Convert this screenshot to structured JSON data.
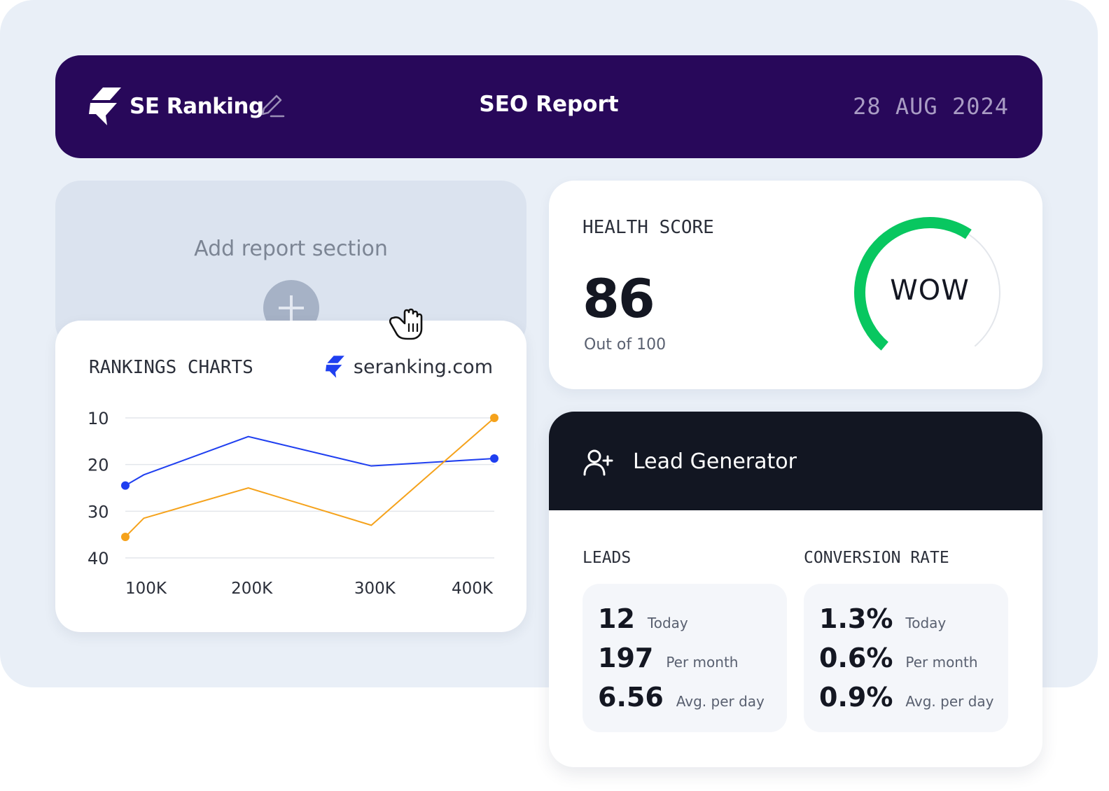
{
  "header": {
    "brand_name": "SE Ranking",
    "title": "SEO Report",
    "date": "28 AUG 2024"
  },
  "add_section": {
    "label": "Add report section"
  },
  "rankings": {
    "title": "RANKINGS CHARTS",
    "source": "seranking.com"
  },
  "chart_data": {
    "type": "line",
    "x": [
      100,
      115,
      200,
      300,
      400
    ],
    "categories": [
      "100K",
      "200K",
      "300K",
      "400K"
    ],
    "category_x": [
      100,
      200,
      300,
      400
    ],
    "yticks": [
      "10",
      "20",
      "30",
      "40"
    ],
    "ytick_values": [
      10,
      20,
      30,
      40
    ],
    "ylim": [
      10,
      40
    ],
    "xlim": [
      100,
      400
    ],
    "y_inverted": true,
    "grid": true,
    "series": [
      {
        "color": "#1f3ff0",
        "x": [
          100,
          115,
          200,
          300,
          400
        ],
        "values": [
          24.5,
          22.2,
          14,
          20.3,
          18.7
        ]
      },
      {
        "color": "#f5a21b",
        "x": [
          100,
          115,
          200,
          300,
          400
        ],
        "values": [
          35.5,
          31.5,
          25,
          33,
          10
        ]
      }
    ]
  },
  "health": {
    "title": "HEALTH SCORE",
    "score": "86",
    "subtitle": "Out of 100",
    "badge": "WOW",
    "score_fraction": 0.86,
    "gauge_color": "#08c760"
  },
  "lead_generator": {
    "title": "Lead Generator",
    "leads": {
      "label": "LEADS",
      "rows": [
        {
          "value": "12",
          "desc": "Today"
        },
        {
          "value": "197",
          "desc": "Per month"
        },
        {
          "value": "6.56",
          "desc": "Avg. per day"
        }
      ]
    },
    "conversion": {
      "label": "CONVERSION RATE",
      "rows": [
        {
          "value": "1.3%",
          "desc": "Today"
        },
        {
          "value": "0.6%",
          "desc": "Per month"
        },
        {
          "value": "0.9%",
          "desc": "Avg. per day"
        }
      ]
    }
  },
  "icons": {
    "brand": "se-ranking-logo-icon",
    "edit": "pencil-icon",
    "add": "plus-icon",
    "cursor": "grab-hand-icon",
    "lead": "add-user-icon"
  }
}
